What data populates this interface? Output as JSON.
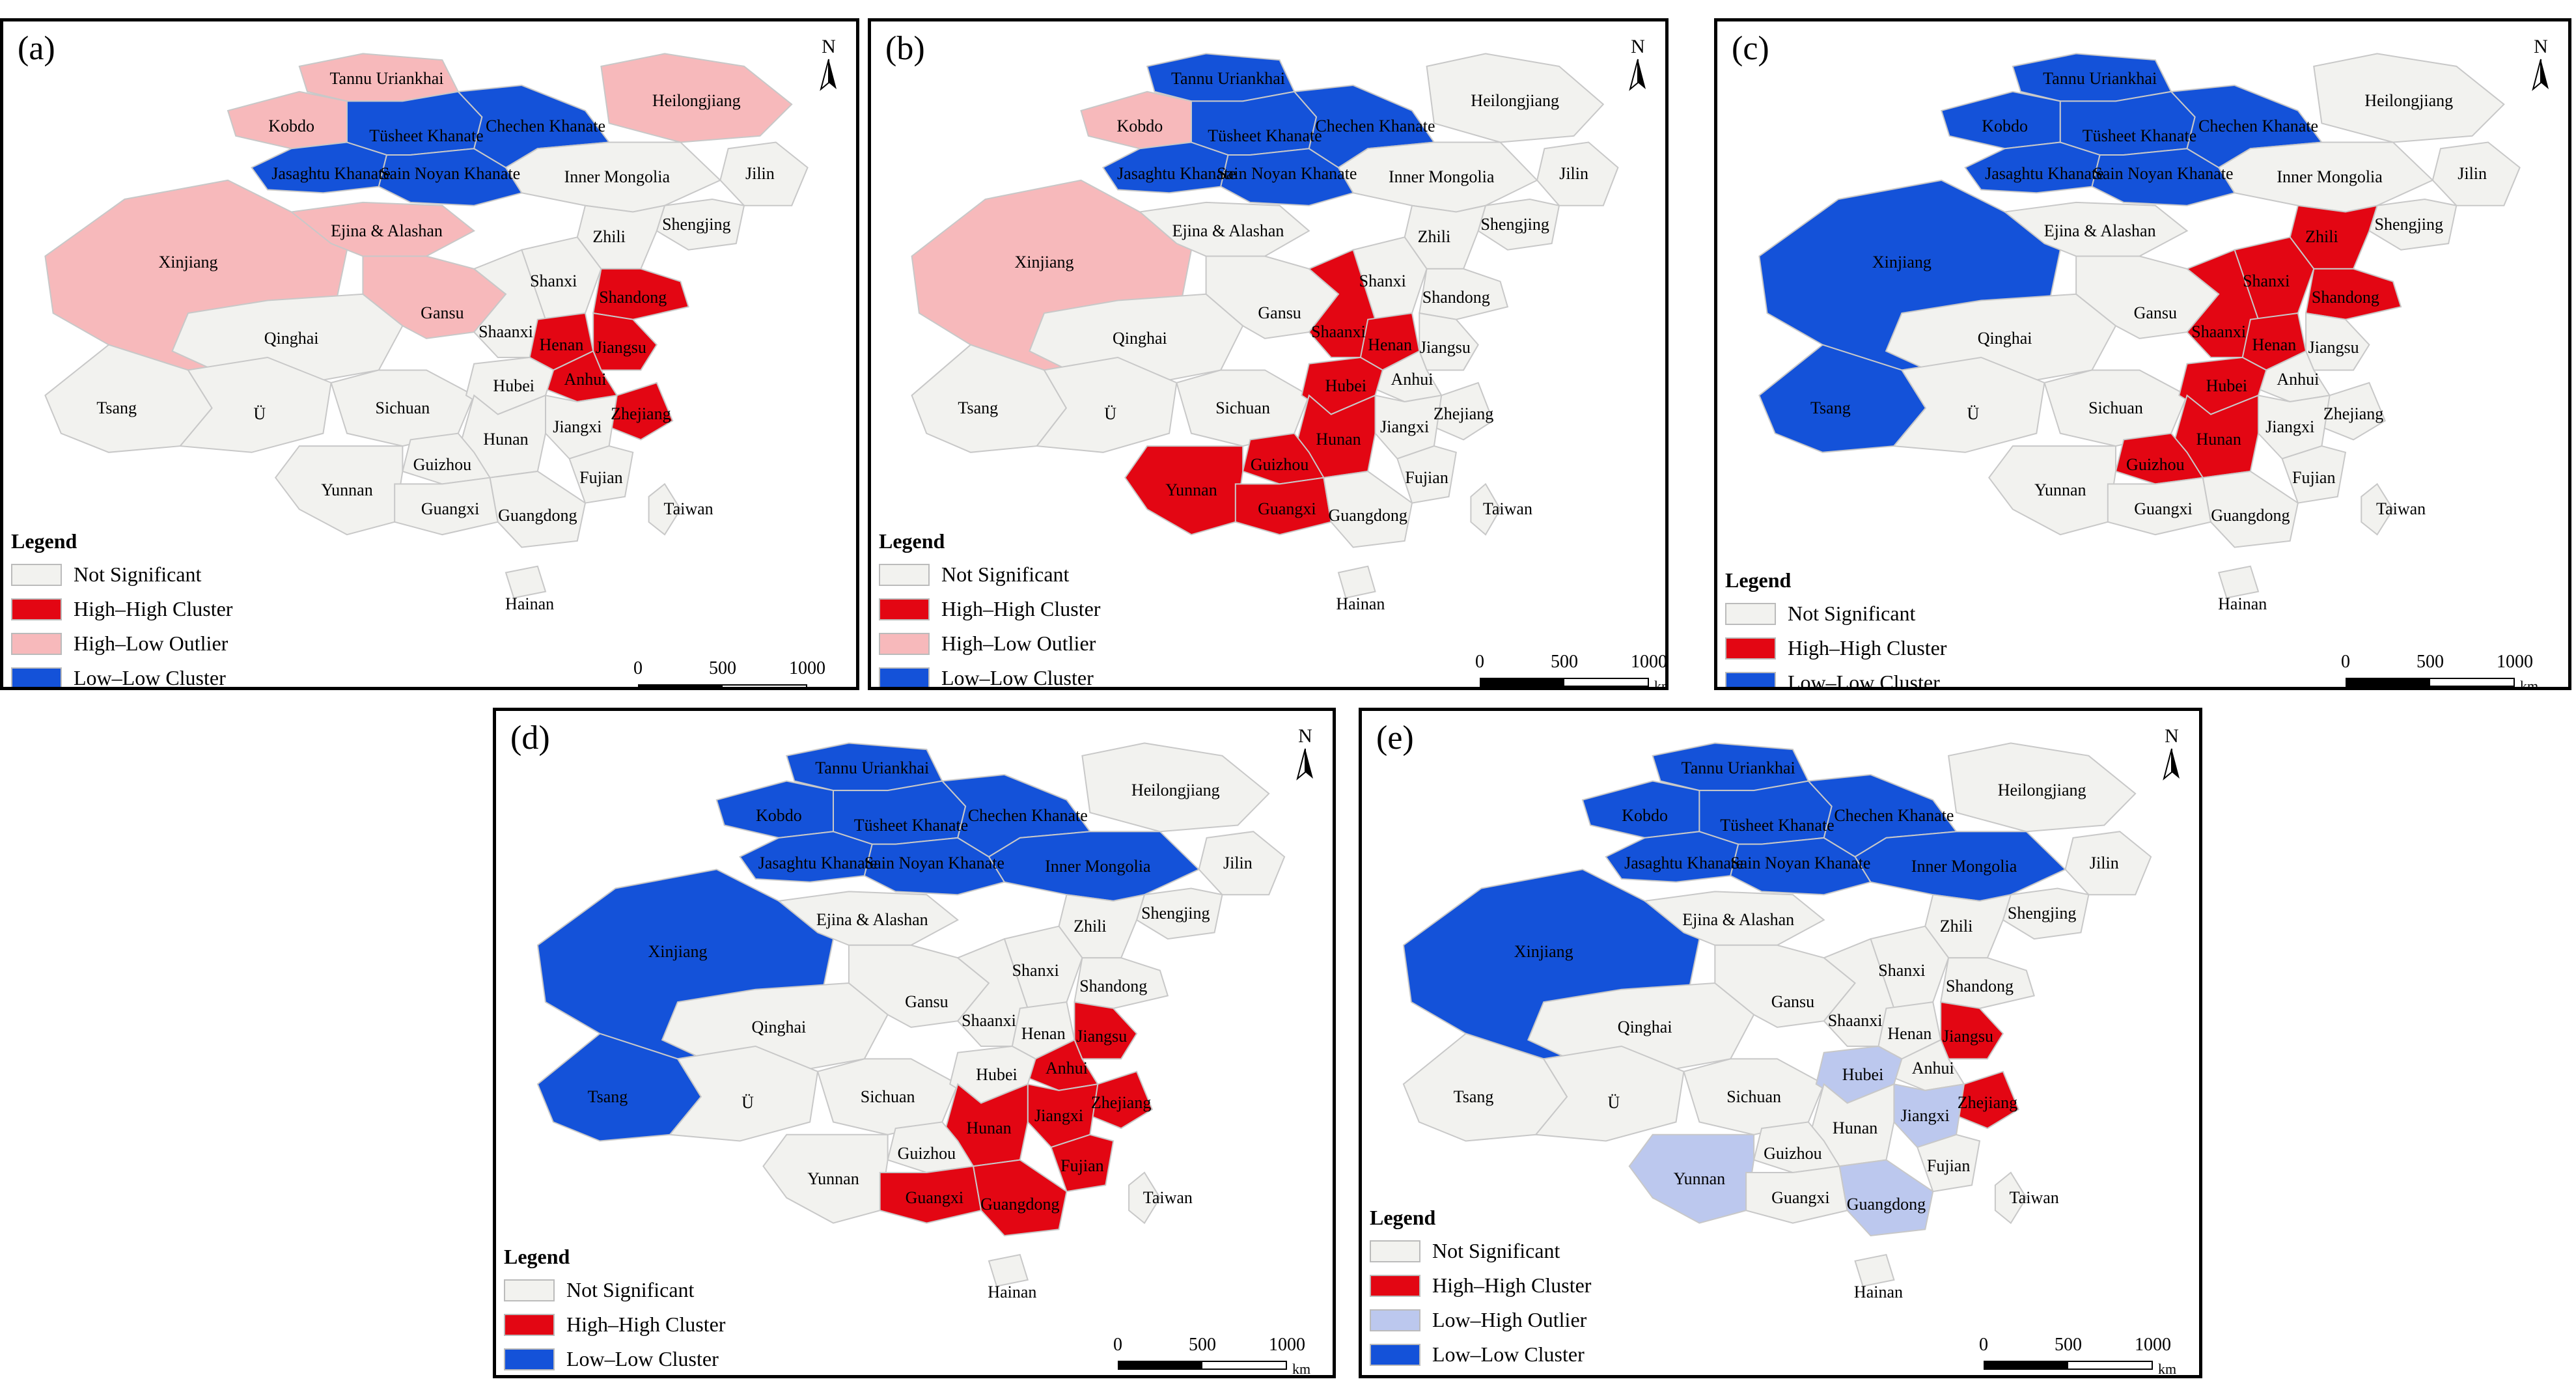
{
  "colors": {
    "not_significant": "#f2f2ef",
    "high_high": "#e30613",
    "high_low": "#f7b9bb",
    "low_high": "#bcc8ee",
    "low_low": "#1452d9",
    "border": "#c8c8c8"
  },
  "legend_title": "Legend",
  "north_letter": "N",
  "scale": {
    "ticks": [
      "0",
      "500",
      "1000"
    ],
    "unit": "km"
  },
  "regions": [
    "Tannu Uriankhai",
    "Kobdo",
    "Jasaghtu Khanate",
    "Tüsheet Khanate",
    "Sain Noyan Khanate",
    "Chechen Khanate",
    "Heilongjiang",
    "Jilin",
    "Shengjing",
    "Inner Mongolia",
    "Xinjiang",
    "Ejina & Alashan",
    "Zhili",
    "Shanxi",
    "Shandong",
    "Qinghai",
    "Gansu",
    "Shaanxi",
    "Henan",
    "Jiangsu",
    "Anhui",
    "Tsang",
    "Ü",
    "Sichuan",
    "Hubei",
    "Zhejiang",
    "Jiangxi",
    "Hunan",
    "Guizhou",
    "Fujian",
    "Yunnan",
    "Guangxi",
    "Guangdong",
    "Taiwan",
    "Hainan"
  ],
  "panels": [
    {
      "letter": "(a)",
      "legend": [
        "Not Significant",
        "High–High Cluster",
        "High–Low Outlier",
        "Low–Low Cluster"
      ],
      "legend_keys": [
        "not_significant",
        "high_high",
        "high_low",
        "low_low"
      ],
      "classes": {
        "Tannu Uriankhai": "high_low",
        "Kobdo": "high_low",
        "Jasaghtu Khanate": "low_low",
        "Tüsheet Khanate": "low_low",
        "Sain Noyan Khanate": "low_low",
        "Chechen Khanate": "low_low",
        "Heilongjiang": "high_low",
        "Xinjiang": "high_low",
        "Ejina & Alashan": "high_low",
        "Gansu": "high_low",
        "Shandong": "high_high",
        "Henan": "high_high",
        "Anhui": "high_high",
        "Jiangsu": "high_high",
        "Zhejiang": "high_high"
      }
    },
    {
      "letter": "(b)",
      "legend": [
        "Not Significant",
        "High–High Cluster",
        "High–Low Outlier",
        "Low–Low Cluster"
      ],
      "legend_keys": [
        "not_significant",
        "high_high",
        "high_low",
        "low_low"
      ],
      "classes": {
        "Tannu Uriankhai": "low_low",
        "Jasaghtu Khanate": "low_low",
        "Tüsheet Khanate": "low_low",
        "Sain Noyan Khanate": "low_low",
        "Chechen Khanate": "low_low",
        "Kobdo": "high_low",
        "Xinjiang": "high_low",
        "Shaanxi": "high_high",
        "Henan": "high_high",
        "Hubei": "high_high",
        "Hunan": "high_high",
        "Guizhou": "high_high",
        "Yunnan": "high_high",
        "Guangxi": "high_high"
      }
    },
    {
      "letter": "(c)",
      "legend": [
        "Not Significant",
        "High–High Cluster",
        "Low–Low Cluster"
      ],
      "legend_keys": [
        "not_significant",
        "high_high",
        "low_low"
      ],
      "classes": {
        "Tannu Uriankhai": "low_low",
        "Kobdo": "low_low",
        "Jasaghtu Khanate": "low_low",
        "Tüsheet Khanate": "low_low",
        "Sain Noyan Khanate": "low_low",
        "Chechen Khanate": "low_low",
        "Xinjiang": "low_low",
        "Tsang": "low_low",
        "Zhili": "high_high",
        "Shanxi": "high_high",
        "Shandong": "high_high",
        "Shaanxi": "high_high",
        "Henan": "high_high",
        "Hubei": "high_high",
        "Hunan": "high_high",
        "Guizhou": "high_high"
      }
    },
    {
      "letter": "(d)",
      "legend": [
        "Not Significant",
        "High–High Cluster",
        "Low–Low Cluster"
      ],
      "legend_keys": [
        "not_significant",
        "high_high",
        "low_low"
      ],
      "classes": {
        "Tannu Uriankhai": "low_low",
        "Kobdo": "low_low",
        "Jasaghtu Khanate": "low_low",
        "Tüsheet Khanate": "low_low",
        "Sain Noyan Khanate": "low_low",
        "Chechen Khanate": "low_low",
        "Inner Mongolia": "low_low",
        "Xinjiang": "low_low",
        "Tsang": "low_low",
        "Jiangsu": "high_high",
        "Anhui": "high_high",
        "Zhejiang": "high_high",
        "Jiangxi": "high_high",
        "Hunan": "high_high",
        "Fujian": "high_high",
        "Guangxi": "high_high",
        "Guangdong": "high_high"
      }
    },
    {
      "letter": "(e)",
      "legend": [
        "Not Significant",
        "High–High Cluster",
        "Low–High Outlier",
        "Low–Low Cluster"
      ],
      "legend_keys": [
        "not_significant",
        "high_high",
        "low_high",
        "low_low"
      ],
      "classes": {
        "Tannu Uriankhai": "low_low",
        "Kobdo": "low_low",
        "Jasaghtu Khanate": "low_low",
        "Tüsheet Khanate": "low_low",
        "Sain Noyan Khanate": "low_low",
        "Chechen Khanate": "low_low",
        "Inner Mongolia": "low_low",
        "Xinjiang": "low_low",
        "Jiangsu": "high_high",
        "Zhejiang": "high_high",
        "Hubei": "low_high",
        "Jiangxi": "low_high",
        "Yunnan": "low_high",
        "Guangdong": "low_high"
      }
    }
  ]
}
